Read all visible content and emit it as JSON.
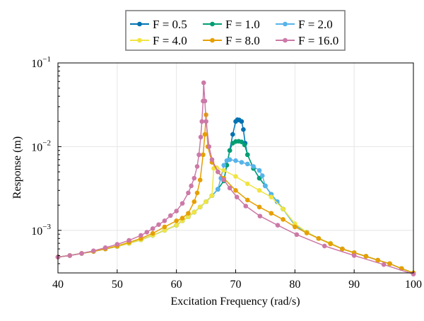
{
  "chart_data": {
    "type": "line",
    "title": "",
    "xlabel": "Excitation Frequency (rad/s)",
    "ylabel": "Response (m)",
    "xlim": [
      40,
      100
    ],
    "ylim": [
      0.00031,
      0.1
    ],
    "yscale": "log",
    "grid": true,
    "legend_position": "top-center-outside",
    "x_ticks": [
      40,
      50,
      60,
      70,
      80,
      90,
      100
    ],
    "x_tick_labels": [
      "40",
      "50",
      "60",
      "70",
      "80",
      "90",
      "100"
    ],
    "y_ticks": [
      0.001,
      0.01,
      0.1
    ],
    "y_tick_labels": [
      {
        "base": "10",
        "exp": "−3"
      },
      {
        "base": "10",
        "exp": "−2"
      },
      {
        "base": "10",
        "exp": "−1"
      }
    ],
    "series": [
      {
        "name": "F = 0.5",
        "color": "#0072b2",
        "x": [
          40,
          42,
          44,
          46,
          48,
          50,
          52,
          54,
          56,
          58,
          60,
          61,
          62,
          63,
          64,
          65,
          66,
          67,
          68,
          68.5,
          69,
          69.5,
          70,
          70.3,
          70.6,
          71,
          71.3,
          71.6,
          72,
          73,
          74,
          75,
          76,
          77,
          78,
          80,
          82,
          84,
          86,
          88,
          90,
          92,
          94,
          96,
          98,
          100
        ],
        "y": [
          0.00048,
          0.0005,
          0.00053,
          0.00056,
          0.0006,
          0.00064,
          0.0007,
          0.00077,
          0.00087,
          0.001,
          0.00115,
          0.0013,
          0.00145,
          0.00165,
          0.0019,
          0.0022,
          0.0026,
          0.0031,
          0.0039,
          0.006,
          0.009,
          0.014,
          0.02,
          0.021,
          0.0208,
          0.02,
          0.016,
          0.011,
          0.008,
          0.0055,
          0.0042,
          0.0034,
          0.0027,
          0.0022,
          0.0018,
          0.00115,
          0.00095,
          0.0008,
          0.0007,
          0.0006,
          0.00054,
          0.00049,
          0.00044,
          0.0004,
          0.00035,
          0.00031
        ]
      },
      {
        "name": "F = 1.0",
        "color": "#009e73",
        "x": [
          40,
          42,
          44,
          46,
          48,
          50,
          52,
          54,
          56,
          58,
          60,
          61,
          62,
          63,
          64,
          65,
          66,
          67,
          68,
          68.5,
          69,
          69.5,
          70,
          70.5,
          71,
          71.5,
          72,
          73,
          74,
          75,
          76,
          77,
          78,
          80,
          82,
          84,
          86,
          88,
          90,
          92,
          94,
          96,
          98,
          100
        ],
        "y": [
          0.00048,
          0.0005,
          0.00053,
          0.00056,
          0.0006,
          0.00064,
          0.0007,
          0.00077,
          0.00087,
          0.001,
          0.00115,
          0.0013,
          0.00145,
          0.00165,
          0.0019,
          0.0022,
          0.0026,
          0.0031,
          0.0039,
          0.006,
          0.009,
          0.011,
          0.0115,
          0.0116,
          0.0114,
          0.0105,
          0.008,
          0.0055,
          0.0042,
          0.0034,
          0.0027,
          0.0022,
          0.0018,
          0.00115,
          0.00095,
          0.0008,
          0.0007,
          0.0006,
          0.00054,
          0.00049,
          0.00044,
          0.0004,
          0.00035,
          0.00031
        ]
      },
      {
        "name": "F = 2.0",
        "color": "#56b4e9",
        "x": [
          40,
          42,
          44,
          46,
          48,
          50,
          52,
          54,
          56,
          58,
          60,
          61,
          62,
          63,
          64,
          65,
          66,
          67,
          67.5,
          68,
          68.5,
          69,
          70,
          71,
          72,
          73,
          74,
          74.5,
          75,
          76,
          77,
          78,
          80,
          82,
          84,
          86,
          88,
          90,
          92,
          94,
          96,
          98,
          100
        ],
        "y": [
          0.00048,
          0.0005,
          0.00053,
          0.00056,
          0.0006,
          0.00064,
          0.0007,
          0.00077,
          0.00087,
          0.001,
          0.00115,
          0.0013,
          0.00145,
          0.00165,
          0.0019,
          0.0022,
          0.0026,
          0.0031,
          0.0042,
          0.006,
          0.0068,
          0.007,
          0.0068,
          0.0065,
          0.0062,
          0.0058,
          0.0052,
          0.0045,
          0.0034,
          0.0027,
          0.0022,
          0.0018,
          0.00115,
          0.00095,
          0.0008,
          0.0007,
          0.0006,
          0.00054,
          0.00049,
          0.00044,
          0.0004,
          0.00035,
          0.00031
        ]
      },
      {
        "name": "F = 4.0",
        "color": "#f0e442",
        "x": [
          40,
          42,
          44,
          46,
          48,
          50,
          52,
          54,
          56,
          58,
          60,
          61,
          62,
          63,
          64,
          65,
          66,
          66.3,
          66.8,
          68,
          70,
          72,
          74,
          76,
          78,
          80,
          82,
          84,
          86,
          88,
          90,
          92,
          94,
          96,
          98,
          100
        ],
        "y": [
          0.00048,
          0.0005,
          0.00053,
          0.00056,
          0.0006,
          0.00064,
          0.0007,
          0.00077,
          0.00087,
          0.001,
          0.00115,
          0.0013,
          0.00145,
          0.00165,
          0.0019,
          0.0022,
          0.0026,
          0.0055,
          0.0056,
          0.0052,
          0.0044,
          0.0036,
          0.003,
          0.0025,
          0.0018,
          0.0012,
          0.00095,
          0.0008,
          0.0007,
          0.0006,
          0.00054,
          0.00049,
          0.00044,
          0.0004,
          0.00035,
          0.00031
        ]
      },
      {
        "name": "F = 8.0",
        "color": "#e69f00",
        "x": [
          40,
          42,
          44,
          46,
          48,
          50,
          52,
          54,
          56,
          58,
          60,
          61,
          62,
          63,
          63.5,
          64,
          64.5,
          64.8,
          65,
          65.3,
          66,
          67,
          68,
          70,
          72,
          74,
          76,
          78,
          80,
          82,
          84,
          86,
          88,
          90,
          92,
          94,
          96,
          98,
          100
        ],
        "y": [
          0.00048,
          0.0005,
          0.00053,
          0.00056,
          0.0006,
          0.00065,
          0.00072,
          0.0008,
          0.00092,
          0.0011,
          0.0013,
          0.0014,
          0.0016,
          0.0022,
          0.0028,
          0.004,
          0.008,
          0.014,
          0.024,
          0.01,
          0.0065,
          0.005,
          0.0042,
          0.003,
          0.0023,
          0.0019,
          0.0016,
          0.00135,
          0.0011,
          0.00093,
          0.0008,
          0.00069,
          0.0006,
          0.00054,
          0.00049,
          0.00044,
          0.0004,
          0.00035,
          0.00031
        ]
      },
      {
        "name": "F = 16.0",
        "color": "#cc79a7",
        "x": [
          40,
          42,
          44,
          46,
          48,
          50,
          52,
          54,
          55,
          56,
          57,
          58,
          59,
          60,
          61,
          62,
          62.5,
          63,
          63.5,
          63.8,
          64.1,
          64.3,
          64.5,
          64.6,
          64.8,
          65,
          65.5,
          66,
          67,
          68,
          69,
          70.2,
          71.7,
          74.1,
          77.1,
          80.3,
          85,
          90,
          95,
          100
        ],
        "y": [
          0.00048,
          0.0005,
          0.00053,
          0.00057,
          0.00062,
          0.00068,
          0.00076,
          0.00087,
          0.00095,
          0.00105,
          0.00117,
          0.0013,
          0.0015,
          0.0017,
          0.0021,
          0.0028,
          0.0034,
          0.0042,
          0.0058,
          0.008,
          0.013,
          0.02,
          0.035,
          0.058,
          0.035,
          0.02,
          0.01,
          0.007,
          0.005,
          0.004,
          0.0032,
          0.0025,
          0.00195,
          0.00148,
          0.00115,
          0.00089,
          0.00065,
          0.0005,
          0.00039,
          0.0003
        ]
      }
    ]
  }
}
